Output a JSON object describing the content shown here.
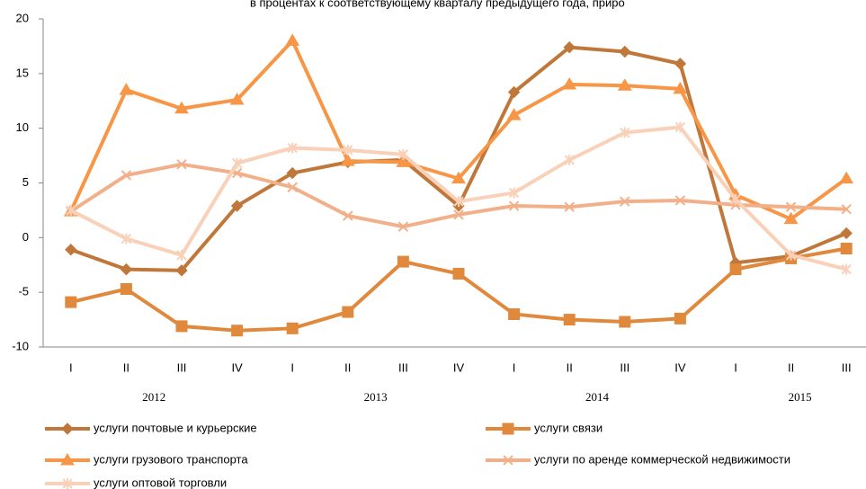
{
  "chart_data": {
    "type": "line",
    "title": "в процентах к соответствующему кварталу предыдущего года, приро",
    "categories": [
      "I",
      "II",
      "III",
      "IV",
      "I",
      "II",
      "III",
      "IV",
      "I",
      "II",
      "III",
      "IV",
      "I",
      "II",
      "III"
    ],
    "years": [
      "2012",
      "2013",
      "2014",
      "2015"
    ],
    "ylim": [
      -10,
      20
    ],
    "yticks": [
      -10,
      -5,
      0,
      5,
      10,
      15,
      20
    ],
    "grid": false,
    "series": [
      {
        "name": "услуги почтовые и курьерские",
        "color": "#c0773a",
        "marker": "diamond",
        "values": [
          -1.1,
          -2.9,
          -3.0,
          2.9,
          5.9,
          6.9,
          7.1,
          2.9,
          13.3,
          17.4,
          17.0,
          15.9,
          -2.3,
          -1.7,
          0.4
        ]
      },
      {
        "name": "услуги связи",
        "color": "#e0893c",
        "marker": "square",
        "values": [
          -5.9,
          -4.7,
          -8.1,
          -8.5,
          -8.3,
          -6.8,
          -2.2,
          -3.3,
          -7.0,
          -7.5,
          -7.7,
          -7.4,
          -2.9,
          -1.9,
          -1.0
        ]
      },
      {
        "name": "услуги грузового транспорта",
        "color": "#f79646",
        "marker": "triangle",
        "values": [
          2.4,
          13.5,
          11.8,
          12.6,
          18.0,
          7.0,
          6.9,
          5.4,
          11.2,
          14.0,
          13.9,
          13.6,
          3.9,
          1.7,
          5.4
        ]
      },
      {
        "name": "услуги по аренде коммерческой недвижимости",
        "color": "#f2b08a",
        "marker": "x",
        "values": [
          2.4,
          5.7,
          6.7,
          5.9,
          4.6,
          2.0,
          1.0,
          2.1,
          2.9,
          2.8,
          3.3,
          3.4,
          3.0,
          2.8,
          2.6
        ]
      },
      {
        "name": "услуги оптовой торговли",
        "color": "#f9d0b8",
        "marker": "star",
        "values": [
          2.5,
          -0.1,
          -1.6,
          6.8,
          8.2,
          8.0,
          7.6,
          3.3,
          4.1,
          7.1,
          9.6,
          10.1,
          3.5,
          -1.6,
          -2.9
        ]
      }
    ]
  }
}
